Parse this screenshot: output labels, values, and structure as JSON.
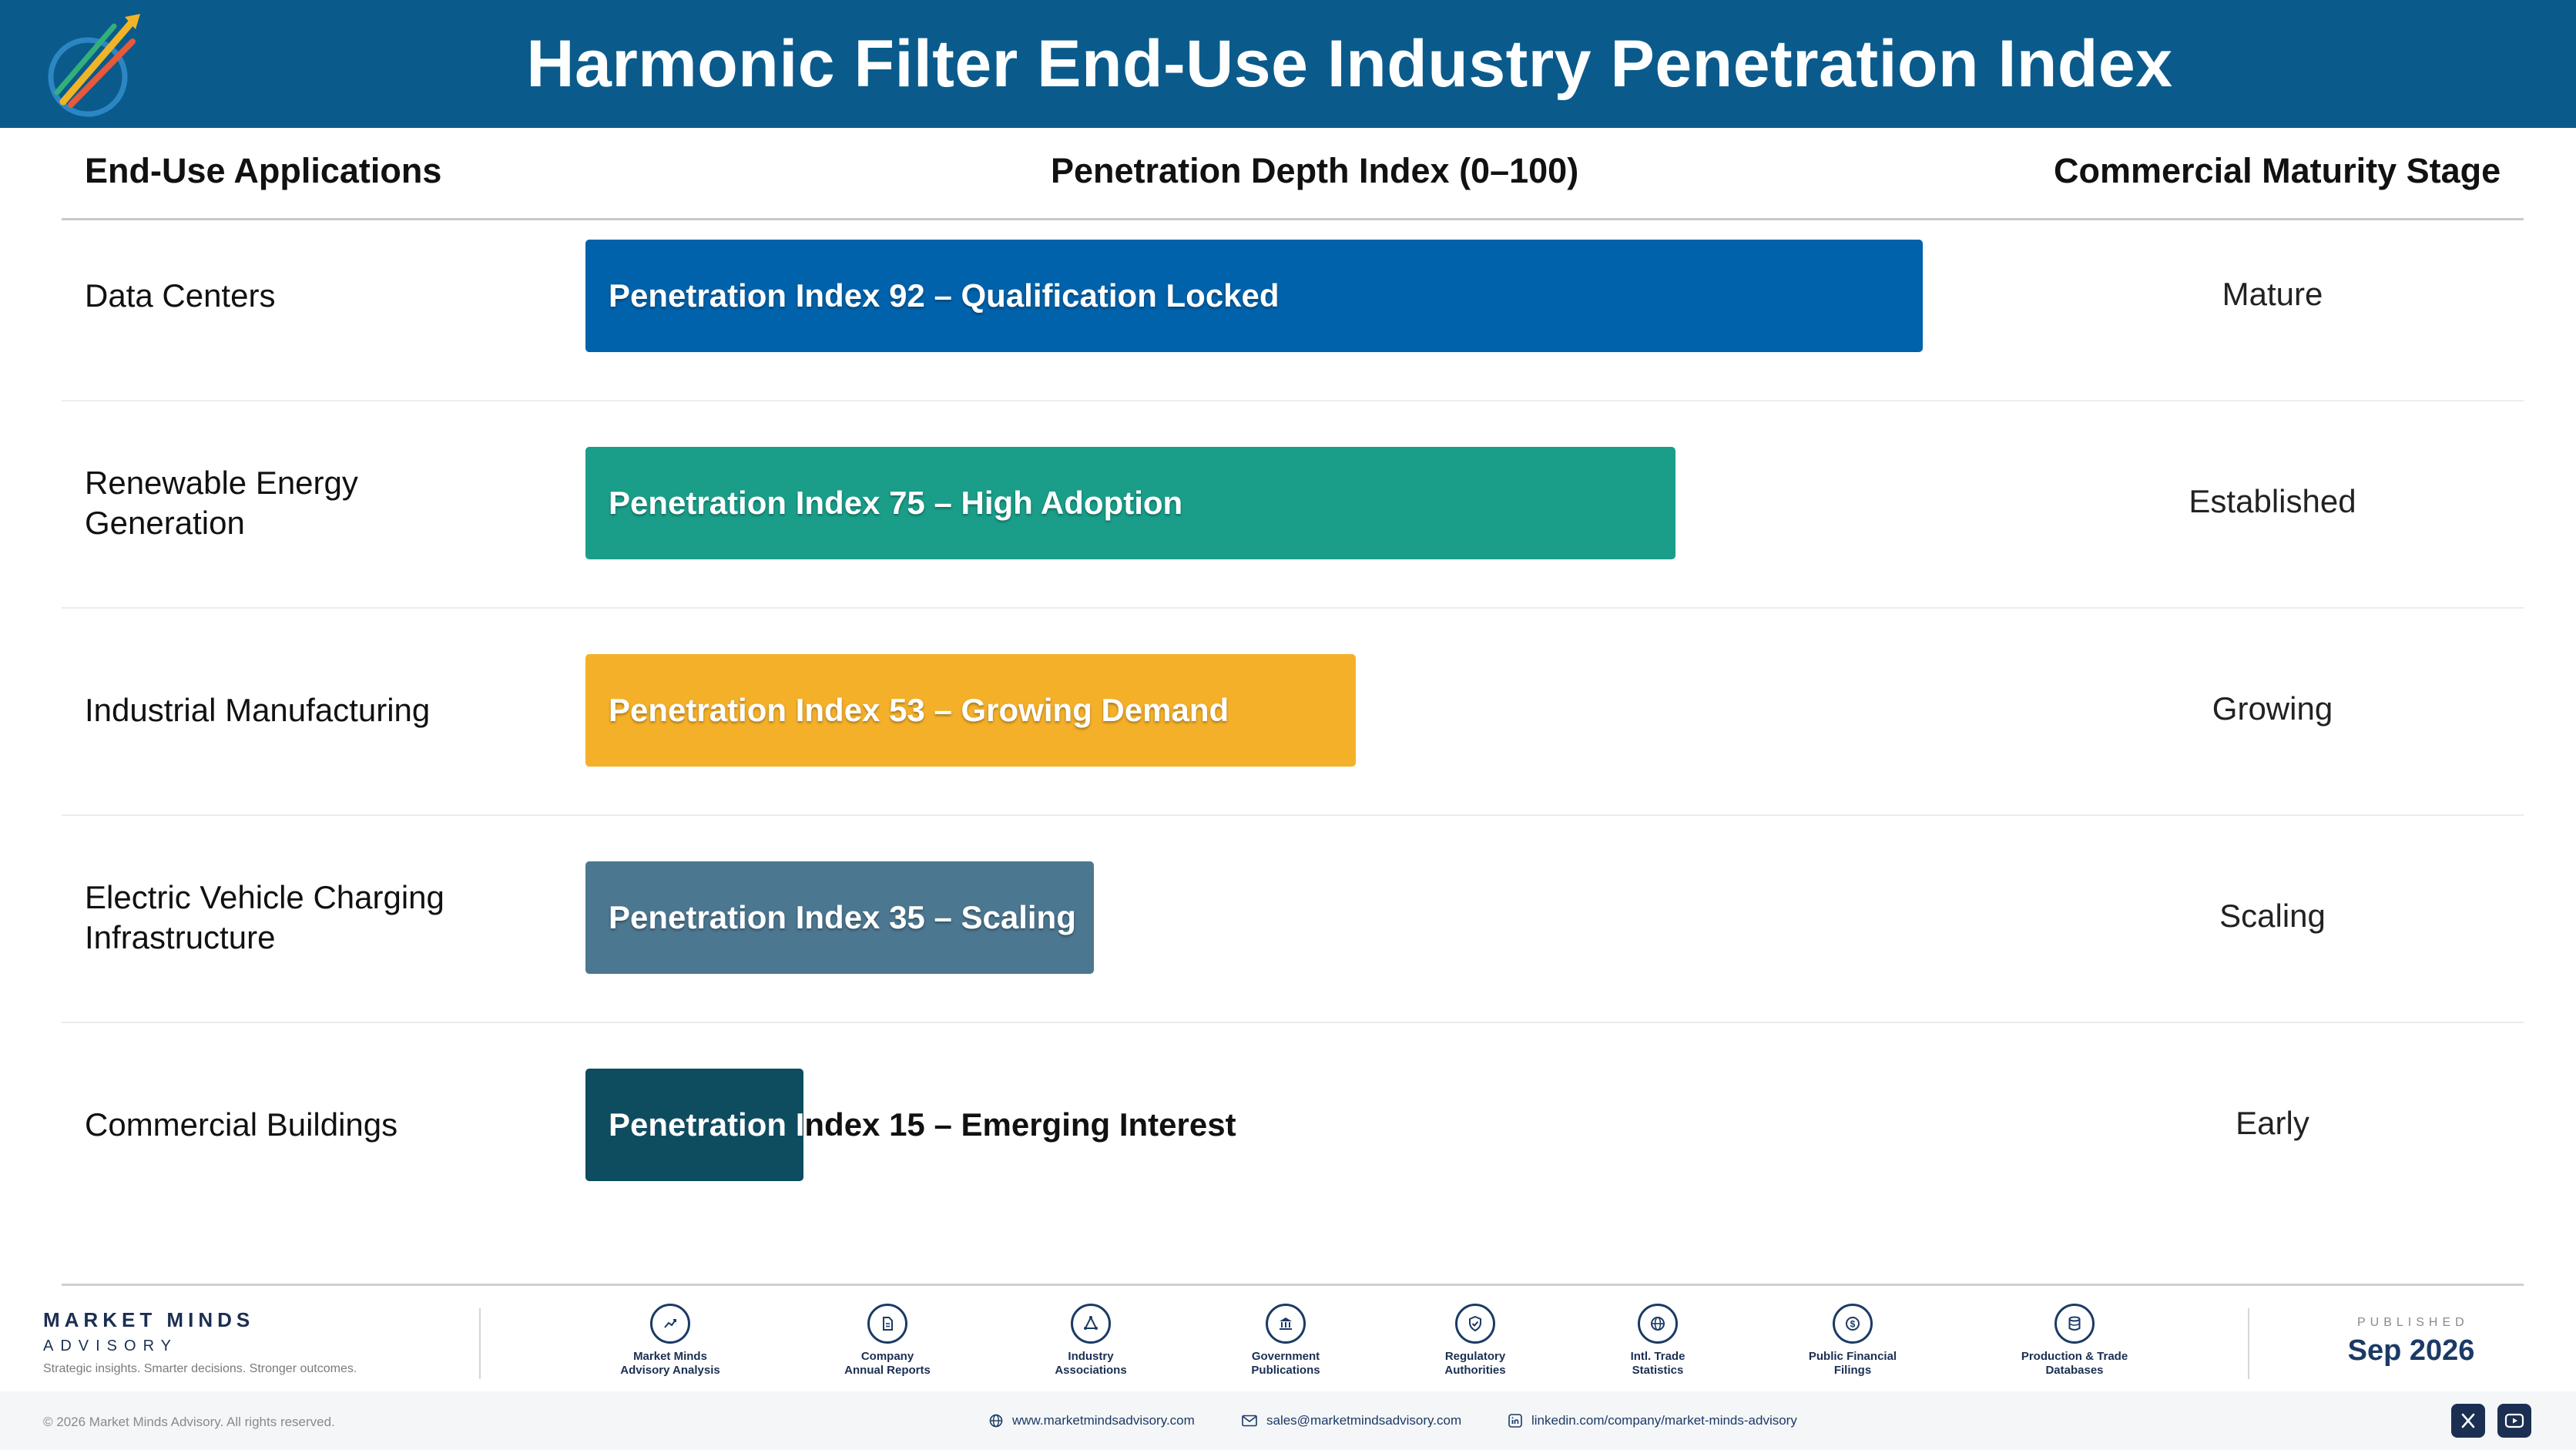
{
  "header": {
    "title": "Harmonic Filter End-Use Industry Penetration Index",
    "logo_icon": "market-minds-logo"
  },
  "columns": {
    "applications": "End-Use Applications",
    "index": "Penetration Depth Index (0–100)",
    "stage": "Commercial Maturity Stage"
  },
  "chart_data": {
    "type": "bar",
    "orientation": "horizontal",
    "title": "Harmonic Filter End-Use Industry Penetration Index",
    "xlim": [
      0,
      100
    ],
    "categories": [
      "Data Centers",
      "Renewable Energy Generation",
      "Industrial Manufacturing",
      "Electric Vehicle Charging Infrastructure",
      "Commercial Buildings"
    ],
    "values": [
      92,
      75,
      53,
      35,
      15
    ],
    "bar_labels": [
      "Penetration Index 92 – Qualification Locked",
      "Penetration Index 75 – High Adoption",
      "Penetration Index 53 – Growing Demand",
      "Penetration Index 35 – Scaling",
      "Penetration Index 15 – Emerging Interest"
    ],
    "stages": [
      "Mature",
      "Established",
      "Growing",
      "Scaling",
      "Early"
    ],
    "colors": [
      "#0062ab",
      "#1a9e8a",
      "#f5b02a",
      "#4c7790",
      "#0e4c60"
    ]
  },
  "footer": {
    "brand_name": "MARKET MINDS",
    "brand_sub": "ADVISORY",
    "tagline": "Strategic insights. Smarter decisions. Stronger outcomes.",
    "sources": [
      {
        "line1": "Market Minds",
        "line2": "Advisory Analysis",
        "icon": "trend-chart-icon"
      },
      {
        "line1": "Company",
        "line2": "Annual Reports",
        "icon": "document-icon"
      },
      {
        "line1": "Industry",
        "line2": "Associations",
        "icon": "network-icon"
      },
      {
        "line1": "Government",
        "line2": "Publications",
        "icon": "bank-icon"
      },
      {
        "line1": "Regulatory",
        "line2": "Authorities",
        "icon": "shield-check-icon"
      },
      {
        "line1": "Intl. Trade",
        "line2": "Statistics",
        "icon": "globe-icon"
      },
      {
        "line1": "Public Financial",
        "line2": "Filings",
        "icon": "dollar-coin-icon"
      },
      {
        "line1": "Production & Trade",
        "line2": "Databases",
        "icon": "database-icon"
      }
    ],
    "published_label": "PUBLISHED",
    "published_date": "Sep 2026",
    "copyright": "© 2026 Market Minds Advisory. All rights reserved.",
    "website": "www.marketmindsadvisory.com",
    "email": "sales@marketmindsadvisory.com",
    "linkedin": "linkedin.com/company/market-minds-advisory",
    "social": [
      "x-icon",
      "youtube-icon"
    ]
  }
}
